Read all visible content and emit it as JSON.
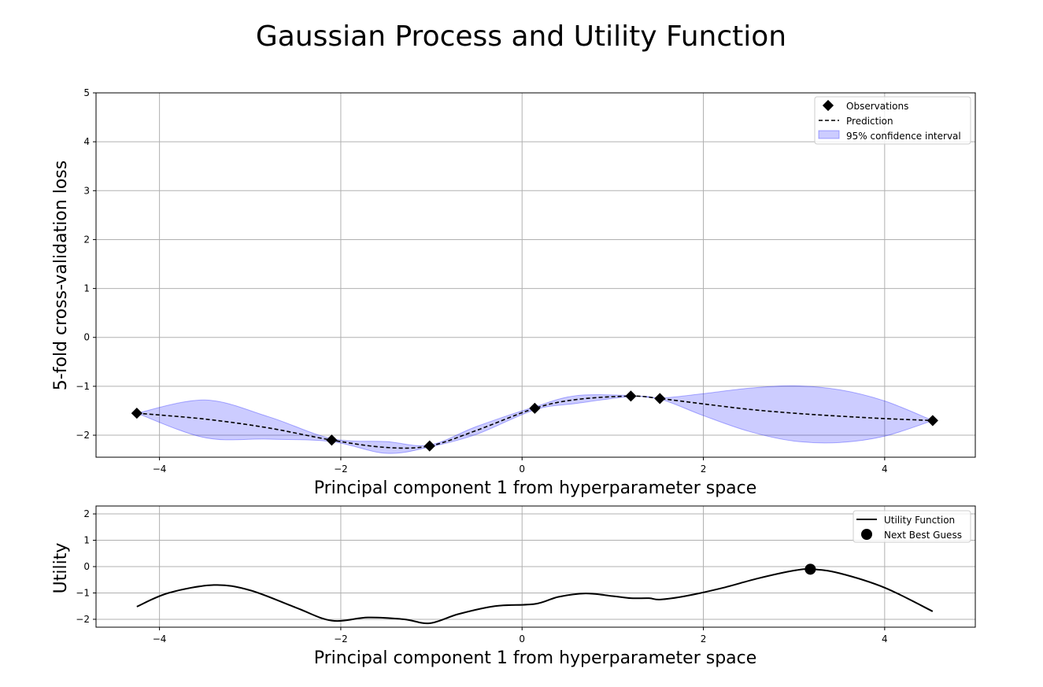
{
  "title": "Gaussian Process and Utility Function",
  "chart_data": [
    {
      "type": "line",
      "panel": "gp",
      "xlabel": "Principal component 1 from hyperparameter space",
      "ylabel": "5-fold cross-validation loss",
      "xlim": [
        -4.7,
        5.0
      ],
      "ylim": [
        -2.45,
        5.0
      ],
      "xticks": [
        -4,
        -2,
        0,
        2,
        4
      ],
      "yticks": [
        -2,
        -1,
        0,
        1,
        2,
        3,
        4,
        5
      ],
      "grid": true,
      "legend_position": "top-right",
      "observations": {
        "name": "Observations",
        "color": "#000000",
        "points": [
          {
            "x": -4.25,
            "y": -1.55
          },
          {
            "x": -2.1,
            "y": -2.1
          },
          {
            "x": -1.02,
            "y": -2.22
          },
          {
            "x": 0.14,
            "y": -1.45
          },
          {
            "x": 1.2,
            "y": -1.2
          },
          {
            "x": 1.52,
            "y": -1.25
          },
          {
            "x": 4.53,
            "y": -1.7
          }
        ]
      },
      "prediction": {
        "name": "Prediction",
        "color": "#000000",
        "x": [
          -4.25,
          -3.5,
          -2.8,
          -2.1,
          -1.5,
          -1.02,
          -0.5,
          0.14,
          0.6,
          1.2,
          1.52,
          2.0,
          2.5,
          3.0,
          3.5,
          4.0,
          4.53
        ],
        "y": [
          -1.55,
          -1.67,
          -1.85,
          -2.1,
          -2.25,
          -2.22,
          -1.9,
          -1.45,
          -1.27,
          -1.2,
          -1.25,
          -1.36,
          -1.47,
          -1.55,
          -1.61,
          -1.66,
          -1.7
        ]
      },
      "confidence_interval": {
        "name": "95% confidence interval",
        "color": "#0000ff",
        "opacity": 0.2,
        "x": [
          -4.25,
          -3.5,
          -2.8,
          -2.1,
          -1.5,
          -1.02,
          -0.5,
          0.14,
          0.6,
          1.2,
          1.52,
          2.0,
          2.5,
          3.0,
          3.5,
          4.0,
          4.53
        ],
        "upper": [
          -1.55,
          -1.28,
          -1.62,
          -2.07,
          -2.13,
          -2.2,
          -1.82,
          -1.42,
          -1.19,
          -1.19,
          -1.24,
          -1.15,
          -1.04,
          -0.99,
          -1.07,
          -1.3,
          -1.7
        ],
        "lower": [
          -1.55,
          -2.05,
          -2.08,
          -2.13,
          -2.37,
          -2.24,
          -1.98,
          -1.48,
          -1.35,
          -1.21,
          -1.26,
          -1.6,
          -1.92,
          -2.12,
          -2.15,
          -2.02,
          -1.7
        ]
      }
    },
    {
      "type": "line",
      "panel": "utility",
      "xlabel": "Principal component 1 from hyperparameter space",
      "ylabel": "Utility",
      "xlim": [
        -4.7,
        5.0
      ],
      "ylim": [
        -2.3,
        2.3
      ],
      "xticks": [
        -4,
        -2,
        0,
        2,
        4
      ],
      "yticks": [
        -2,
        -1,
        0,
        1,
        2
      ],
      "grid": true,
      "legend_position": "top-right",
      "utility": {
        "name": "Utility Function",
        "color": "#000000",
        "x": [
          -4.25,
          -3.9,
          -3.4,
          -3.0,
          -2.5,
          -2.1,
          -1.7,
          -1.3,
          -1.02,
          -0.7,
          -0.3,
          0.14,
          0.4,
          0.7,
          1.0,
          1.2,
          1.4,
          1.52,
          1.8,
          2.2,
          2.6,
          3.0,
          3.2,
          3.5,
          4.0,
          4.53
        ],
        "y": [
          -1.52,
          -1.0,
          -0.7,
          -0.9,
          -1.55,
          -2.05,
          -1.93,
          -2.0,
          -2.15,
          -1.8,
          -1.5,
          -1.42,
          -1.15,
          -1.02,
          -1.12,
          -1.2,
          -1.2,
          -1.25,
          -1.12,
          -0.82,
          -0.45,
          -0.15,
          -0.1,
          -0.25,
          -0.8,
          -1.7
        ]
      },
      "next_best_guess": {
        "name": "Next Best Guess",
        "color": "#000000",
        "x": 3.18,
        "y": -0.1
      }
    }
  ]
}
